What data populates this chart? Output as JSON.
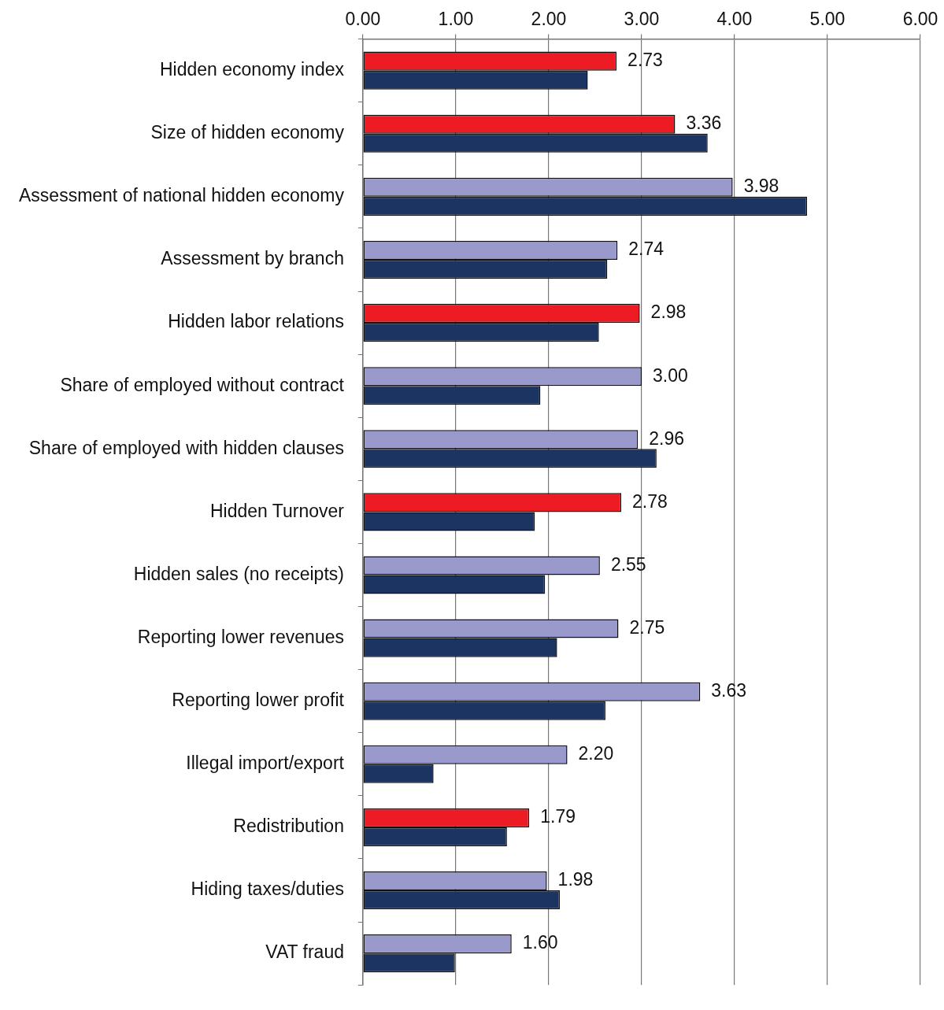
{
  "chart_data": {
    "type": "bar",
    "orientation": "horizontal",
    "categories": [
      "Hidden economy index",
      "Size of hidden economy",
      "Assessment of national hidden economy",
      "Assessment by branch",
      "Hidden labor relations",
      "Share of employed without contract",
      "Share of employed with hidden clauses",
      "Hidden Turnover",
      "Hidden sales (no receipts)",
      "Reporting lower revenues",
      "Reporting lower profit",
      "Illegal import/export",
      "Redistribution",
      "Hiding taxes/duties",
      "VAT fraud"
    ],
    "series": [
      {
        "colors": [
          "#ed1c24",
          "#ed1c24",
          "#9999cc",
          "#9999cc",
          "#ed1c24",
          "#9999cc",
          "#9999cc",
          "#ed1c24",
          "#9999cc",
          "#9999cc",
          "#9999cc",
          "#9999cc",
          "#ed1c24",
          "#9999cc",
          "#9999cc"
        ],
        "values": [
          2.73,
          3.36,
          3.98,
          2.74,
          2.98,
          3.0,
          2.96,
          2.78,
          2.55,
          2.75,
          3.63,
          2.2,
          1.79,
          1.98,
          1.6
        ],
        "value_labels": [
          "2.73",
          "3.36",
          "3.98",
          "2.74",
          "2.98",
          "3.00",
          "2.96",
          "2.78",
          "2.55",
          "2.75",
          "3.63",
          "2.20",
          "1.79",
          "1.98",
          "1.60"
        ]
      },
      {
        "color": "#1c3461",
        "values": [
          2.42,
          3.71,
          4.78,
          2.63,
          2.54,
          1.91,
          3.16,
          1.85,
          1.96,
          2.09,
          2.61,
          0.76,
          1.55,
          2.12,
          0.99
        ]
      }
    ],
    "xlim": [
      0,
      6
    ],
    "xticks": [
      {
        "value": 0,
        "label": "0.00"
      },
      {
        "value": 1,
        "label": "1.00"
      },
      {
        "value": 2,
        "label": "2.00"
      },
      {
        "value": 3,
        "label": "3.00"
      },
      {
        "value": 4,
        "label": "4.00"
      },
      {
        "value": 5,
        "label": "5.00"
      },
      {
        "value": 6,
        "label": "6.00"
      }
    ],
    "grid": "x"
  }
}
